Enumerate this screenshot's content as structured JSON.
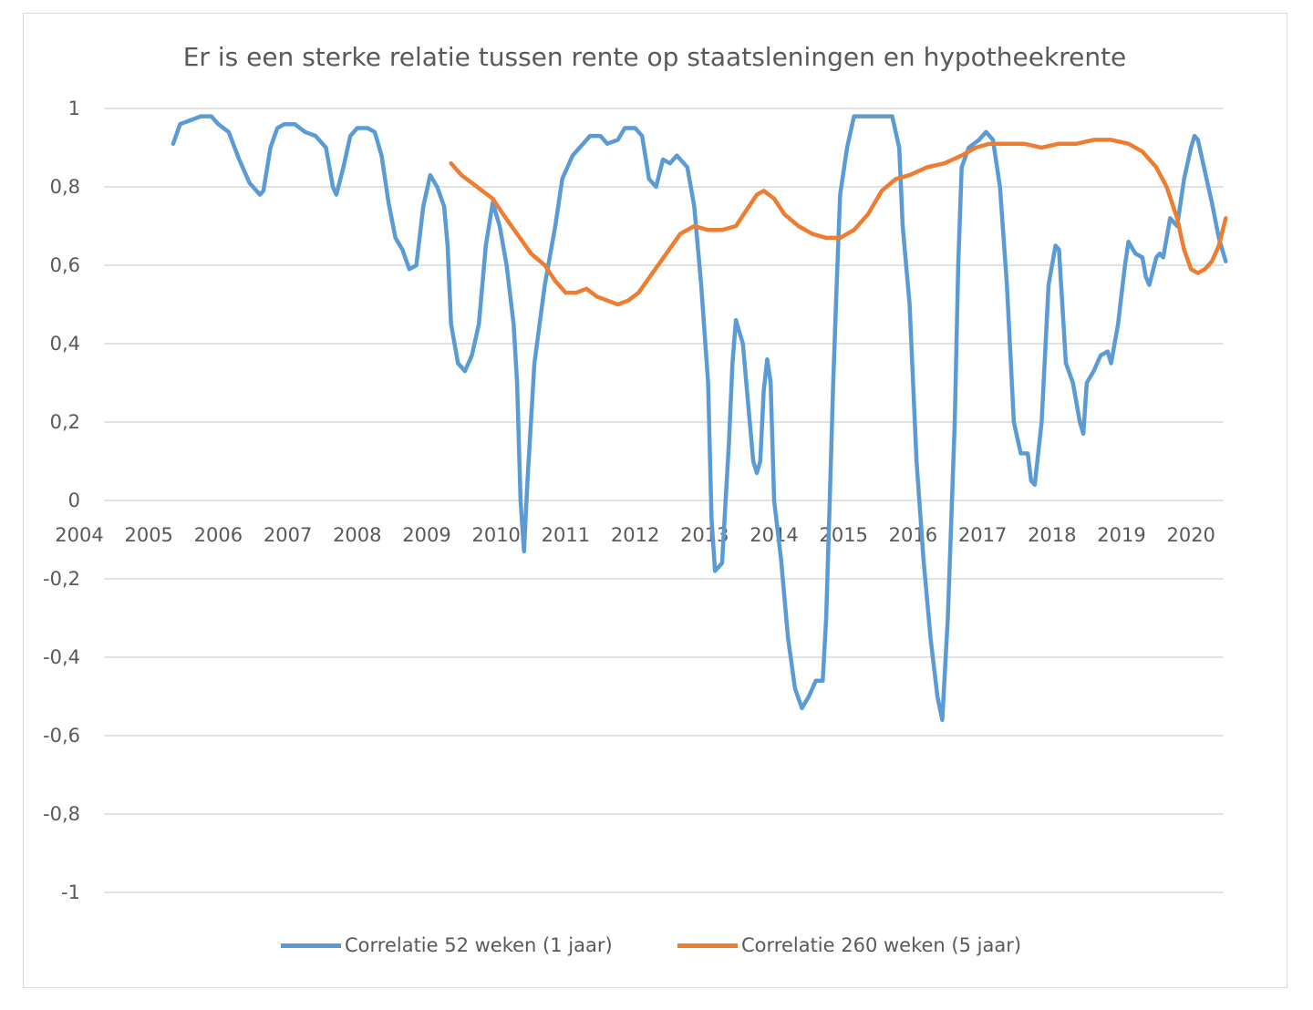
{
  "chart_data": {
    "type": "line",
    "title": "Er is een sterke relatie tussen rente op staatsleningen en hypotheekrente",
    "xlabel": "",
    "ylabel": "",
    "x_ticks": [
      "2004",
      "2005",
      "2006",
      "2007",
      "2008",
      "2009",
      "2010",
      "2011",
      "2012",
      "2013",
      "2014",
      "2015",
      "2016",
      "2017",
      "2018",
      "2019",
      "2020"
    ],
    "y_ticks": [
      "1",
      "0,8",
      "0,6",
      "0,4",
      "0,2",
      "0",
      "-0,2",
      "-0,4",
      "-0,6",
      "-0,8",
      "-1"
    ],
    "xlim": [
      2004.0,
      2020.5
    ],
    "ylim": [
      -1,
      1
    ],
    "grid": true,
    "legend": "bottom",
    "series": [
      {
        "name": "Correlatie 52 weken (1 jaar)",
        "color": "#5b9bd5",
        "points": [
          [
            2005.35,
            0.91
          ],
          [
            2005.45,
            0.96
          ],
          [
            2005.6,
            0.97
          ],
          [
            2005.75,
            0.98
          ],
          [
            2005.9,
            0.98
          ],
          [
            2006.0,
            0.96
          ],
          [
            2006.15,
            0.94
          ],
          [
            2006.3,
            0.87
          ],
          [
            2006.45,
            0.81
          ],
          [
            2006.6,
            0.78
          ],
          [
            2006.65,
            0.79
          ],
          [
            2006.75,
            0.9
          ],
          [
            2006.85,
            0.95
          ],
          [
            2006.95,
            0.96
          ],
          [
            2007.1,
            0.96
          ],
          [
            2007.25,
            0.94
          ],
          [
            2007.4,
            0.93
          ],
          [
            2007.55,
            0.9
          ],
          [
            2007.65,
            0.8
          ],
          [
            2007.7,
            0.78
          ],
          [
            2007.8,
            0.85
          ],
          [
            2007.9,
            0.93
          ],
          [
            2008.0,
            0.95
          ],
          [
            2008.15,
            0.95
          ],
          [
            2008.25,
            0.94
          ],
          [
            2008.35,
            0.88
          ],
          [
            2008.45,
            0.76
          ],
          [
            2008.55,
            0.67
          ],
          [
            2008.65,
            0.64
          ],
          [
            2008.75,
            0.59
          ],
          [
            2008.85,
            0.6
          ],
          [
            2008.95,
            0.75
          ],
          [
            2009.05,
            0.83
          ],
          [
            2009.15,
            0.8
          ],
          [
            2009.25,
            0.75
          ],
          [
            2009.3,
            0.65
          ],
          [
            2009.35,
            0.45
          ],
          [
            2009.45,
            0.35
          ],
          [
            2009.55,
            0.33
          ],
          [
            2009.65,
            0.37
          ],
          [
            2009.75,
            0.45
          ],
          [
            2009.85,
            0.65
          ],
          [
            2009.95,
            0.76
          ],
          [
            2010.05,
            0.7
          ],
          [
            2010.15,
            0.6
          ],
          [
            2010.25,
            0.45
          ],
          [
            2010.3,
            0.3
          ],
          [
            2010.35,
            0.0
          ],
          [
            2010.4,
            -0.13
          ],
          [
            2010.45,
            0.05
          ],
          [
            2010.55,
            0.35
          ],
          [
            2010.7,
            0.55
          ],
          [
            2010.85,
            0.7
          ],
          [
            2010.95,
            0.82
          ],
          [
            2011.1,
            0.88
          ],
          [
            2011.25,
            0.91
          ],
          [
            2011.35,
            0.93
          ],
          [
            2011.5,
            0.93
          ],
          [
            2011.6,
            0.91
          ],
          [
            2011.75,
            0.92
          ],
          [
            2011.85,
            0.95
          ],
          [
            2012.0,
            0.95
          ],
          [
            2012.1,
            0.93
          ],
          [
            2012.2,
            0.82
          ],
          [
            2012.3,
            0.8
          ],
          [
            2012.4,
            0.87
          ],
          [
            2012.5,
            0.86
          ],
          [
            2012.6,
            0.88
          ],
          [
            2012.75,
            0.85
          ],
          [
            2012.85,
            0.75
          ],
          [
            2012.95,
            0.55
          ],
          [
            2013.05,
            0.3
          ],
          [
            2013.1,
            -0.05
          ],
          [
            2013.15,
            -0.18
          ],
          [
            2013.25,
            -0.16
          ],
          [
            2013.35,
            0.15
          ],
          [
            2013.4,
            0.35
          ],
          [
            2013.45,
            0.46
          ],
          [
            2013.55,
            0.4
          ],
          [
            2013.6,
            0.3
          ],
          [
            2013.7,
            0.1
          ],
          [
            2013.75,
            0.07
          ],
          [
            2013.8,
            0.1
          ],
          [
            2013.85,
            0.28
          ],
          [
            2013.9,
            0.36
          ],
          [
            2013.95,
            0.3
          ],
          [
            2014.0,
            0.0
          ],
          [
            2014.1,
            -0.15
          ],
          [
            2014.2,
            -0.35
          ],
          [
            2014.3,
            -0.48
          ],
          [
            2014.4,
            -0.53
          ],
          [
            2014.5,
            -0.5
          ],
          [
            2014.6,
            -0.46
          ],
          [
            2014.7,
            -0.46
          ],
          [
            2014.75,
            -0.3
          ],
          [
            2014.8,
            0.0
          ],
          [
            2014.85,
            0.3
          ],
          [
            2014.9,
            0.55
          ],
          [
            2014.95,
            0.78
          ],
          [
            2015.05,
            0.9
          ],
          [
            2015.15,
            0.98
          ],
          [
            2015.3,
            0.98
          ],
          [
            2015.45,
            0.98
          ],
          [
            2015.6,
            0.98
          ],
          [
            2015.7,
            0.98
          ],
          [
            2015.8,
            0.9
          ],
          [
            2015.85,
            0.7
          ],
          [
            2015.95,
            0.5
          ],
          [
            2016.0,
            0.3
          ],
          [
            2016.05,
            0.1
          ],
          [
            2016.15,
            -0.15
          ],
          [
            2016.25,
            -0.35
          ],
          [
            2016.35,
            -0.5
          ],
          [
            2016.42,
            -0.56
          ],
          [
            2016.5,
            -0.3
          ],
          [
            2016.6,
            0.2
          ],
          [
            2016.65,
            0.6
          ],
          [
            2016.7,
            0.85
          ],
          [
            2016.8,
            0.9
          ],
          [
            2016.95,
            0.92
          ],
          [
            2017.05,
            0.94
          ],
          [
            2017.15,
            0.92
          ],
          [
            2017.25,
            0.8
          ],
          [
            2017.35,
            0.55
          ],
          [
            2017.45,
            0.2
          ],
          [
            2017.55,
            0.12
          ],
          [
            2017.65,
            0.12
          ],
          [
            2017.7,
            0.05
          ],
          [
            2017.75,
            0.04
          ],
          [
            2017.85,
            0.2
          ],
          [
            2017.95,
            0.55
          ],
          [
            2018.05,
            0.65
          ],
          [
            2018.1,
            0.64
          ],
          [
            2018.2,
            0.35
          ],
          [
            2018.3,
            0.3
          ],
          [
            2018.4,
            0.2
          ],
          [
            2018.45,
            0.17
          ],
          [
            2018.5,
            0.3
          ],
          [
            2018.6,
            0.33
          ],
          [
            2018.7,
            0.37
          ],
          [
            2018.8,
            0.38
          ],
          [
            2018.85,
            0.35
          ],
          [
            2018.95,
            0.45
          ],
          [
            2019.05,
            0.6
          ],
          [
            2019.1,
            0.66
          ],
          [
            2019.2,
            0.63
          ],
          [
            2019.3,
            0.62
          ],
          [
            2019.35,
            0.57
          ],
          [
            2019.4,
            0.55
          ],
          [
            2019.5,
            0.62
          ],
          [
            2019.55,
            0.63
          ],
          [
            2019.6,
            0.62
          ],
          [
            2019.7,
            0.72
          ],
          [
            2019.8,
            0.7
          ],
          [
            2019.9,
            0.82
          ],
          [
            2020.0,
            0.9
          ],
          [
            2020.05,
            0.93
          ],
          [
            2020.1,
            0.92
          ],
          [
            2020.2,
            0.84
          ],
          [
            2020.3,
            0.76
          ],
          [
            2020.4,
            0.67
          ],
          [
            2020.5,
            0.61
          ]
        ]
      },
      {
        "name": "Correlatie 260 weken (5 jaar)",
        "color": "#ed7d31",
        "points": [
          [
            2009.35,
            0.86
          ],
          [
            2009.5,
            0.83
          ],
          [
            2009.65,
            0.81
          ],
          [
            2009.8,
            0.79
          ],
          [
            2009.95,
            0.77
          ],
          [
            2010.1,
            0.73
          ],
          [
            2010.3,
            0.68
          ],
          [
            2010.5,
            0.63
          ],
          [
            2010.7,
            0.6
          ],
          [
            2010.85,
            0.56
          ],
          [
            2011.0,
            0.53
          ],
          [
            2011.15,
            0.53
          ],
          [
            2011.3,
            0.54
          ],
          [
            2011.45,
            0.52
          ],
          [
            2011.6,
            0.51
          ],
          [
            2011.75,
            0.5
          ],
          [
            2011.9,
            0.51
          ],
          [
            2012.05,
            0.53
          ],
          [
            2012.25,
            0.58
          ],
          [
            2012.45,
            0.63
          ],
          [
            2012.65,
            0.68
          ],
          [
            2012.85,
            0.7
          ],
          [
            2013.05,
            0.69
          ],
          [
            2013.25,
            0.69
          ],
          [
            2013.45,
            0.7
          ],
          [
            2013.6,
            0.74
          ],
          [
            2013.75,
            0.78
          ],
          [
            2013.85,
            0.79
          ],
          [
            2014.0,
            0.77
          ],
          [
            2014.15,
            0.73
          ],
          [
            2014.35,
            0.7
          ],
          [
            2014.55,
            0.68
          ],
          [
            2014.75,
            0.67
          ],
          [
            2014.95,
            0.67
          ],
          [
            2015.15,
            0.69
          ],
          [
            2015.35,
            0.73
          ],
          [
            2015.55,
            0.79
          ],
          [
            2015.75,
            0.82
          ],
          [
            2015.95,
            0.83
          ],
          [
            2016.2,
            0.85
          ],
          [
            2016.45,
            0.86
          ],
          [
            2016.7,
            0.88
          ],
          [
            2016.9,
            0.9
          ],
          [
            2017.1,
            0.91
          ],
          [
            2017.35,
            0.91
          ],
          [
            2017.6,
            0.91
          ],
          [
            2017.85,
            0.9
          ],
          [
            2018.1,
            0.91
          ],
          [
            2018.35,
            0.91
          ],
          [
            2018.6,
            0.92
          ],
          [
            2018.85,
            0.92
          ],
          [
            2019.1,
            0.91
          ],
          [
            2019.3,
            0.89
          ],
          [
            2019.5,
            0.85
          ],
          [
            2019.65,
            0.8
          ],
          [
            2019.8,
            0.72
          ],
          [
            2019.9,
            0.64
          ],
          [
            2020.0,
            0.59
          ],
          [
            2020.1,
            0.58
          ],
          [
            2020.2,
            0.59
          ],
          [
            2020.3,
            0.61
          ],
          [
            2020.4,
            0.65
          ],
          [
            2020.5,
            0.72
          ]
        ]
      }
    ]
  }
}
